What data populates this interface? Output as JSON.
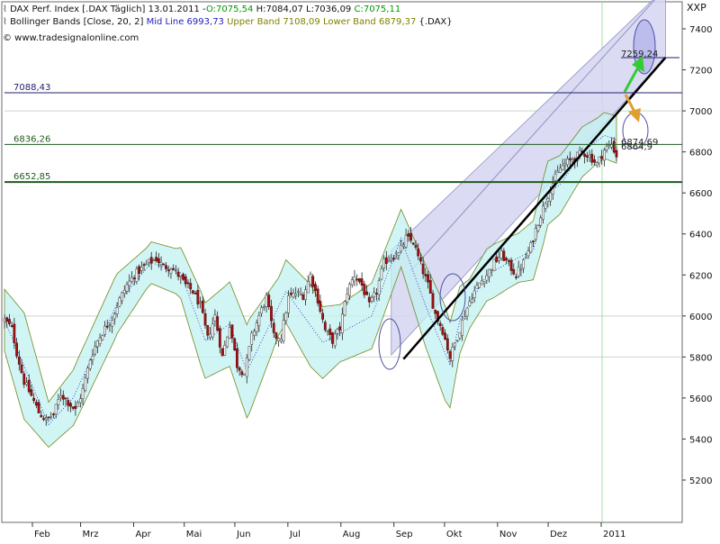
{
  "header": {
    "line1": {
      "index": "DAX Perf. Index [.DAX  Täglich] 13.01.2011 -",
      "open": "O:7075,54",
      "high": "H:7084,07",
      "low": "L:7036,09",
      "close": "C:7075,11"
    },
    "line2": {
      "bb_name": "Bollinger Bands [Close, 20, 2]",
      "mid": "Mid Line 6993,73",
      "upper": "Upper Band 7108,09",
      "lower": "Lower Band 6879,37",
      "symbol": "{.DAX}"
    },
    "line3": "© www.tradesignalonline.com"
  },
  "axis_unit": "XXP",
  "colors": {
    "green_text": "#009900",
    "blue_text": "#2222bb",
    "olive_text": "#808000",
    "band_fill": "#c2f2f2",
    "band_border": "#6e8a1e",
    "channel_fill": "#d5d5f2",
    "candle_up": "#505050",
    "candle_down": "#aa1111",
    "level_dark_green": "#1f5a1f",
    "level_blue": "#22226e",
    "grid": "#c8d8c8",
    "arrow_green": "#33cc33",
    "arrow_orange": "#e0a030"
  },
  "chart_data": {
    "type": "candlestick",
    "title": "DAX Perf. Index [.DAX  Täglich] 13.01.2011",
    "ylabel": "XXP",
    "ylim": [
      5000,
      7500
    ],
    "yticks": [
      5200,
      5400,
      5600,
      5800,
      6000,
      6200,
      6400,
      6600,
      6800,
      7000,
      7200,
      7400
    ],
    "ytick_labels": [
      "5200",
      "5400",
      "5600",
      "5800",
      "6000",
      "6200",
      "6400",
      "6600",
      "6800",
      "7000",
      "7200",
      "7400"
    ],
    "xlim": [
      0,
      250
    ],
    "x_ticks": [
      {
        "label": "Feb",
        "t": 22
      },
      {
        "label": "Mrz",
        "t": 42
      },
      {
        "label": "Apr",
        "t": 64
      },
      {
        "label": "Mai",
        "t": 85
      },
      {
        "label": "Jun",
        "t": 106
      },
      {
        "label": "Jul",
        "t": 128
      },
      {
        "label": "Aug",
        "t": 150
      },
      {
        "label": "Sep",
        "t": 172
      },
      {
        "label": "Okt",
        "t": 193
      },
      {
        "label": "Nov",
        "t": 215
      },
      {
        "label": "Dez",
        "t": 236
      },
      {
        "label": "2011",
        "t": 258
      }
    ],
    "close_anchors": [
      [
        0,
        5980
      ],
      [
        3,
        5940
      ],
      [
        5,
        5820
      ],
      [
        8,
        5680
      ],
      [
        11,
        5610
      ],
      [
        14,
        5530
      ],
      [
        17,
        5490
      ],
      [
        20,
        5520
      ],
      [
        23,
        5620
      ],
      [
        26,
        5580
      ],
      [
        29,
        5540
      ],
      [
        32,
        5640
      ],
      [
        35,
        5790
      ],
      [
        38,
        5880
      ],
      [
        41,
        5940
      ],
      [
        44,
        5990
      ],
      [
        47,
        6080
      ],
      [
        50,
        6150
      ],
      [
        53,
        6200
      ],
      [
        56,
        6230
      ],
      [
        59,
        6260
      ],
      [
        62,
        6280
      ],
      [
        65,
        6240
      ],
      [
        68,
        6240
      ],
      [
        71,
        6200
      ],
      [
        74,
        6150
      ],
      [
        77,
        6120
      ],
      [
        80,
        6050
      ],
      [
        83,
        5890
      ],
      [
        86,
        6000
      ],
      [
        89,
        5800
      ],
      [
        92,
        5960
      ],
      [
        95,
        5760
      ],
      [
        98,
        5720
      ],
      [
        101,
        5900
      ],
      [
        104,
        6000
      ],
      [
        107,
        6090
      ],
      [
        110,
        5900
      ],
      [
        113,
        5900
      ],
      [
        116,
        6090
      ],
      [
        119,
        6110
      ],
      [
        122,
        6100
      ],
      [
        125,
        6200
      ],
      [
        128,
        6080
      ],
      [
        131,
        5930
      ],
      [
        134,
        5880
      ],
      [
        137,
        5940
      ],
      [
        140,
        6120
      ],
      [
        143,
        6200
      ],
      [
        146,
        6150
      ],
      [
        149,
        6050
      ],
      [
        152,
        6120
      ],
      [
        155,
        6260
      ],
      [
        158,
        6290
      ],
      [
        161,
        6300
      ],
      [
        164,
        6380
      ],
      [
        167,
        6360
      ],
      [
        170,
        6250
      ],
      [
        173,
        6150
      ],
      [
        176,
        6010
      ],
      [
        179,
        5930
      ],
      [
        182,
        5800
      ],
      [
        185,
        5900
      ],
      [
        188,
        6010
      ],
      [
        191,
        6100
      ],
      [
        194,
        6160
      ],
      [
        197,
        6200
      ],
      [
        200,
        6260
      ],
      [
        203,
        6300
      ],
      [
        206,
        6250
      ],
      [
        209,
        6200
      ],
      [
        212,
        6260
      ],
      [
        215,
        6340
      ],
      [
        218,
        6460
      ],
      [
        221,
        6560
      ],
      [
        224,
        6650
      ],
      [
        227,
        6720
      ],
      [
        230,
        6750
      ],
      [
        233,
        6770
      ],
      [
        236,
        6800
      ],
      [
        239,
        6780
      ],
      [
        242,
        6740
      ],
      [
        245,
        6810
      ],
      [
        248,
        6840
      ],
      [
        250,
        6780
      ]
    ],
    "trend_anchors": [
      [
        0,
        5980
      ],
      [
        10,
        5700
      ],
      [
        18,
        5470
      ],
      [
        28,
        5600
      ],
      [
        46,
        6060
      ],
      [
        60,
        6260
      ],
      [
        72,
        6210
      ],
      [
        82,
        5880
      ],
      [
        92,
        5960
      ],
      [
        99,
        5730
      ],
      [
        115,
        6120
      ],
      [
        130,
        5870
      ],
      [
        150,
        6000
      ],
      [
        162,
        6380
      ],
      [
        172,
        6050
      ],
      [
        182,
        5760
      ],
      [
        186,
        5980
      ],
      [
        197,
        6200
      ],
      [
        206,
        6260
      ],
      [
        216,
        6320
      ],
      [
        222,
        6600
      ],
      [
        227,
        6640
      ],
      [
        236,
        6800
      ],
      [
        245,
        6880
      ],
      [
        250,
        6860
      ]
    ],
    "bollinger": {
      "period": 20,
      "std_dev": 2,
      "mid": 6993.73,
      "upper": 7108.09,
      "lower": 6879.37
    },
    "horizontal_levels": [
      {
        "value": 7088.43,
        "label": "7088,43",
        "style": "blue"
      },
      {
        "value": 6836.26,
        "label": "6836,26",
        "style": "green"
      },
      {
        "value": 6652.85,
        "label": "6652,85",
        "style": "green-thick"
      }
    ],
    "annotations": {
      "target_label": "7259,24",
      "target_value": 7259.24,
      "overlap_label_1": "6874,69",
      "overlap_label_2": "6864,9"
    },
    "trend_channel": {
      "lower_line": [
        [
          163,
          5790
        ],
        [
          270,
          7260
        ]
      ],
      "upper_line": [
        [
          166,
          6220
        ],
        [
          270,
          7600
        ]
      ],
      "channel_bottom": [
        [
          158,
          5810
        ],
        [
          270,
          7260
        ]
      ],
      "channel_top": [
        [
          158,
          6320
        ],
        [
          270,
          7600
        ]
      ]
    }
  }
}
